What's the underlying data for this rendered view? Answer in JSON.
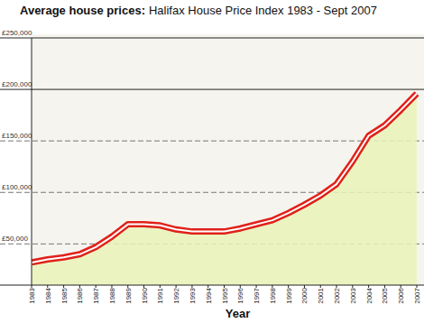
{
  "chart_data": {
    "type": "line",
    "title": "Average house prices:",
    "subtitle": "Halifax House Price Index 1983 - Sept 2007",
    "x_label": "Year",
    "x": [
      1983,
      1984,
      1985,
      1986,
      1987,
      1988,
      1989,
      1990,
      1991,
      1992,
      1993,
      1994,
      1995,
      1996,
      1997,
      1998,
      1999,
      2000,
      2001,
      2002,
      2003,
      2004,
      2005,
      2006,
      2007
    ],
    "series": [
      {
        "name": "Average house price",
        "color": "#e0211a",
        "values": [
          32000,
          35000,
          37000,
          40000,
          47000,
          57000,
          69000,
          69000,
          68000,
          64000,
          62000,
          62000,
          62000,
          65000,
          69000,
          73000,
          80000,
          88000,
          97000,
          108000,
          130000,
          155000,
          165000,
          180000,
          196000
        ]
      }
    ],
    "xlim": [
      1983,
      2007
    ],
    "xticks": [
      1983,
      1984,
      1985,
      1986,
      1987,
      1988,
      1989,
      1990,
      1991,
      1992,
      1993,
      1994,
      1995,
      1996,
      1997,
      1998,
      1999,
      2000,
      2001,
      2002,
      2003,
      2004,
      2005,
      2006,
      2007
    ],
    "ylim": [
      10000,
      250000
    ],
    "yticks": [
      {
        "value": 50000,
        "label": "£50,000"
      },
      {
        "value": 100000,
        "label": "£100,000"
      },
      {
        "value": 150000,
        "label": "£150,000"
      },
      {
        "value": 200000,
        "label": "£200,000"
      },
      {
        "value": 250000,
        "label": "£250,000"
      }
    ],
    "grid": true
  }
}
